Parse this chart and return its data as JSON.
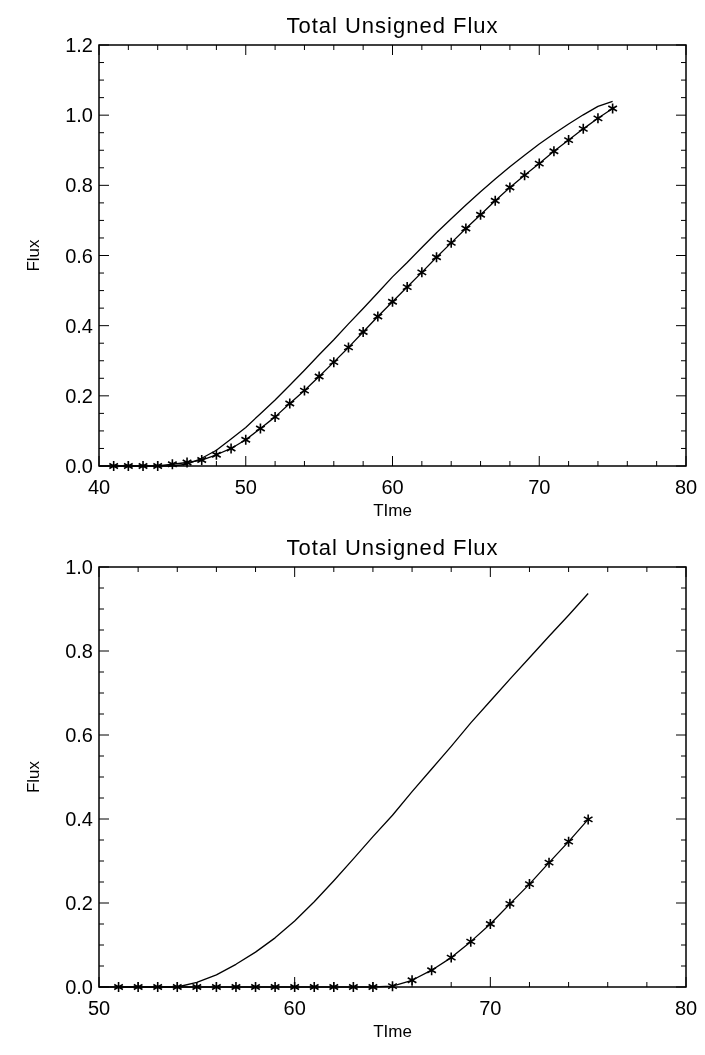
{
  "chart_data": [
    {
      "type": "line",
      "title": "Total Unsigned Flux",
      "xlabel": "TIme",
      "ylabel": "Flux",
      "xlim": [
        40,
        80
      ],
      "ylim": [
        0,
        1.2
      ],
      "xticks": [
        40,
        {
          "value": 42,
          "label": null
        },
        {
          "value": 44,
          "label": null
        },
        {
          "value": 46,
          "label": null
        },
        {
          "value": 48,
          "label": null
        },
        50,
        {
          "value": 52,
          "label": null
        },
        {
          "value": 54,
          "label": null
        },
        {
          "value": 56,
          "label": null
        },
        {
          "value": 58,
          "label": null
        },
        60,
        {
          "value": 62,
          "label": null
        },
        {
          "value": 64,
          "label": null
        },
        {
          "value": 66,
          "label": null
        },
        {
          "value": 68,
          "label": null
        },
        70,
        {
          "value": 72,
          "label": null
        },
        {
          "value": 74,
          "label": null
        },
        {
          "value": 76,
          "label": null
        },
        {
          "value": 78,
          "label": null
        },
        80
      ],
      "yticks": [
        {
          "value": 0,
          "label": "0.0"
        },
        {
          "value": 0.05,
          "label": null
        },
        {
          "value": 0.1,
          "label": null
        },
        {
          "value": 0.15,
          "label": null
        },
        0.2,
        {
          "value": 0.25,
          "label": null
        },
        {
          "value": 0.3,
          "label": null
        },
        {
          "value": 0.35,
          "label": null
        },
        0.4,
        {
          "value": 0.45,
          "label": null
        },
        {
          "value": 0.5,
          "label": null
        },
        {
          "value": 0.55,
          "label": null
        },
        0.6,
        {
          "value": 0.65,
          "label": null
        },
        {
          "value": 0.7,
          "label": null
        },
        {
          "value": 0.75,
          "label": null
        },
        0.8,
        {
          "value": 0.85,
          "label": null
        },
        {
          "value": 0.9,
          "label": null
        },
        {
          "value": 0.95,
          "label": null
        },
        {
          "value": 1,
          "label": "1.0"
        },
        {
          "value": 1.05,
          "label": null
        },
        {
          "value": 1.1,
          "label": null
        },
        {
          "value": 1.15,
          "label": null
        },
        1.2
      ],
      "series": [
        {
          "color": "#000000",
          "marker": "none",
          "x": [
            40,
            41,
            42,
            43,
            44,
            45,
            46,
            47,
            48,
            49,
            50,
            51,
            52,
            53,
            54,
            55,
            56,
            57,
            58,
            59,
            60,
            61,
            62,
            63,
            64,
            65,
            66,
            67,
            68,
            69,
            70,
            71,
            72,
            73,
            74,
            75
          ],
          "values": [
            0,
            0,
            0,
            0,
            0,
            0,
            0.005,
            0.022,
            0.045,
            0.077,
            0.11,
            0.149,
            0.188,
            0.23,
            0.273,
            0.317,
            0.36,
            0.405,
            0.449,
            0.494,
            0.539,
            0.58,
            0.623,
            0.665,
            0.705,
            0.744,
            0.782,
            0.818,
            0.853,
            0.886,
            0.918,
            0.947,
            0.975,
            1.001,
            1.025,
            1.039
          ]
        },
        {
          "color": "#000000",
          "marker": "cross",
          "x": [
            41,
            42,
            43,
            44,
            45,
            46,
            47,
            48,
            49,
            50,
            51,
            52,
            53,
            54,
            55,
            56,
            57,
            58,
            59,
            60,
            61,
            62,
            63,
            64,
            65,
            66,
            67,
            68,
            69,
            70,
            71,
            72,
            73,
            74,
            75
          ],
          "values": [
            0,
            0,
            0,
            0,
            0.005,
            0.01,
            0.017,
            0.032,
            0.05,
            0.075,
            0.107,
            0.14,
            0.178,
            0.215,
            0.255,
            0.296,
            0.338,
            0.382,
            0.426,
            0.468,
            0.51,
            0.552,
            0.595,
            0.636,
            0.677,
            0.716,
            0.756,
            0.794,
            0.829,
            0.862,
            0.897,
            0.929,
            0.961,
            0.991,
            1.019
          ]
        }
      ]
    },
    {
      "type": "line",
      "title": "Total Unsigned Flux",
      "xlabel": "TIme",
      "ylabel": "Flux",
      "xlim": [
        50,
        80
      ],
      "ylim": [
        0,
        1
      ],
      "xticks": [
        50,
        {
          "value": 52,
          "label": null
        },
        {
          "value": 54,
          "label": null
        },
        {
          "value": 56,
          "label": null
        },
        {
          "value": 58,
          "label": null
        },
        60,
        {
          "value": 62,
          "label": null
        },
        {
          "value": 64,
          "label": null
        },
        {
          "value": 66,
          "label": null
        },
        {
          "value": 68,
          "label": null
        },
        70,
        {
          "value": 72,
          "label": null
        },
        {
          "value": 74,
          "label": null
        },
        {
          "value": 76,
          "label": null
        },
        {
          "value": 78,
          "label": null
        },
        80
      ],
      "yticks": [
        {
          "value": 0,
          "label": "0.0"
        },
        {
          "value": 0.05,
          "label": null
        },
        {
          "value": 0.1,
          "label": null
        },
        {
          "value": 0.15,
          "label": null
        },
        0.2,
        {
          "value": 0.25,
          "label": null
        },
        {
          "value": 0.3,
          "label": null
        },
        {
          "value": 0.35,
          "label": null
        },
        0.4,
        {
          "value": 0.45,
          "label": null
        },
        {
          "value": 0.5,
          "label": null
        },
        {
          "value": 0.55,
          "label": null
        },
        0.6,
        {
          "value": 0.65,
          "label": null
        },
        {
          "value": 0.7,
          "label": null
        },
        {
          "value": 0.75,
          "label": null
        },
        0.8,
        {
          "value": 0.85,
          "label": null
        },
        {
          "value": 0.9,
          "label": null
        },
        {
          "value": 0.95,
          "label": null
        },
        {
          "value": 1,
          "label": "1.0"
        }
      ],
      "series": [
        {
          "color": "#000000",
          "marker": "none",
          "x": [
            50,
            51,
            52,
            53,
            54,
            55,
            56,
            57,
            58,
            59,
            60,
            61,
            62,
            63,
            64,
            65,
            66,
            67,
            68,
            69,
            70,
            71,
            72,
            73,
            74,
            75
          ],
          "values": [
            0,
            0,
            0,
            0,
            0,
            0.011,
            0.029,
            0.054,
            0.083,
            0.117,
            0.157,
            0.203,
            0.253,
            0.305,
            0.358,
            0.409,
            0.465,
            0.519,
            0.573,
            0.629,
            0.681,
            0.733,
            0.784,
            0.835,
            0.885,
            0.937
          ]
        },
        {
          "color": "#000000",
          "marker": "cross",
          "x": [
            51,
            52,
            53,
            54,
            55,
            56,
            57,
            58,
            59,
            60,
            61,
            62,
            63,
            64,
            65,
            66,
            67,
            68,
            69,
            70,
            71,
            72,
            73,
            74,
            75
          ],
          "values": [
            0,
            0,
            0,
            0,
            0,
            0,
            0,
            0,
            0,
            0,
            0,
            0,
            0,
            0,
            0.002,
            0.016,
            0.04,
            0.07,
            0.108,
            0.15,
            0.198,
            0.245,
            0.296,
            0.346,
            0.399
          ]
        }
      ]
    }
  ]
}
